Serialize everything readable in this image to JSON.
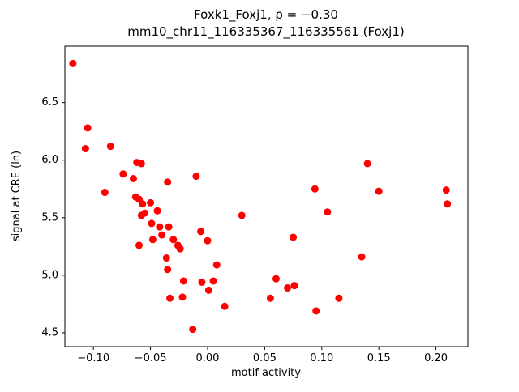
{
  "chart_data": {
    "type": "scatter",
    "title_line1": "Foxk1_Foxj1, ρ = −0.30",
    "title_line2": "mm10_chr11_116335367_116335561 (Foxj1)",
    "title": "Foxk1_Foxj1, ρ = −0.30\nmm10_chr11_116335367_116335561 (Foxj1)",
    "xlabel": "motif activity",
    "ylabel": "signal at CRE (ln)",
    "xlim": [
      -0.125,
      0.228
    ],
    "ylim": [
      4.38,
      6.99
    ],
    "grid": false,
    "legend": null,
    "marker_color": "#ff0000",
    "x_ticks": [
      -0.1,
      -0.05,
      0.0,
      0.05,
      0.1,
      0.15,
      0.2
    ],
    "x_tick_labels": [
      "−0.10",
      "−0.05",
      "0.00",
      "0.05",
      "0.10",
      "0.15",
      "0.20"
    ],
    "y_ticks": [
      4.5,
      5.0,
      5.5,
      6.0,
      6.5
    ],
    "y_tick_labels": [
      "4.5",
      "5.0",
      "5.5",
      "6.0",
      "6.5"
    ],
    "points": [
      [
        -0.118,
        6.84
      ],
      [
        -0.105,
        6.28
      ],
      [
        -0.107,
        6.1
      ],
      [
        -0.09,
        5.72
      ],
      [
        -0.085,
        6.12
      ],
      [
        -0.074,
        5.88
      ],
      [
        -0.065,
        5.84
      ],
      [
        -0.062,
        5.98
      ],
      [
        -0.058,
        5.97
      ],
      [
        -0.063,
        5.68
      ],
      [
        -0.06,
        5.66
      ],
      [
        -0.057,
        5.62
      ],
      [
        -0.055,
        5.54
      ],
      [
        -0.058,
        5.52
      ],
      [
        -0.06,
        5.26
      ],
      [
        -0.05,
        5.63
      ],
      [
        -0.049,
        5.45
      ],
      [
        -0.048,
        5.31
      ],
      [
        -0.044,
        5.56
      ],
      [
        -0.042,
        5.42
      ],
      [
        -0.04,
        5.35
      ],
      [
        -0.035,
        5.81
      ],
      [
        -0.034,
        5.42
      ],
      [
        -0.036,
        5.15
      ],
      [
        -0.035,
        5.05
      ],
      [
        -0.033,
        4.8
      ],
      [
        -0.03,
        5.31
      ],
      [
        -0.026,
        5.26
      ],
      [
        -0.024,
        5.23
      ],
      [
        -0.021,
        4.95
      ],
      [
        -0.022,
        4.81
      ],
      [
        -0.013,
        4.53
      ],
      [
        -0.01,
        5.86
      ],
      [
        -0.006,
        5.38
      ],
      [
        -0.005,
        4.94
      ],
      [
        0.0,
        5.3
      ],
      [
        0.001,
        4.87
      ],
      [
        0.005,
        4.95
      ],
      [
        0.008,
        5.09
      ],
      [
        0.015,
        4.73
      ],
      [
        0.03,
        5.52
      ],
      [
        0.055,
        4.8
      ],
      [
        0.06,
        4.97
      ],
      [
        0.07,
        4.89
      ],
      [
        0.076,
        4.91
      ],
      [
        0.075,
        5.33
      ],
      [
        0.094,
        5.75
      ],
      [
        0.095,
        4.69
      ],
      [
        0.105,
        5.55
      ],
      [
        0.115,
        4.8
      ],
      [
        0.135,
        5.16
      ],
      [
        0.14,
        5.97
      ],
      [
        0.15,
        5.73
      ],
      [
        0.209,
        5.74
      ],
      [
        0.21,
        5.62
      ]
    ]
  }
}
